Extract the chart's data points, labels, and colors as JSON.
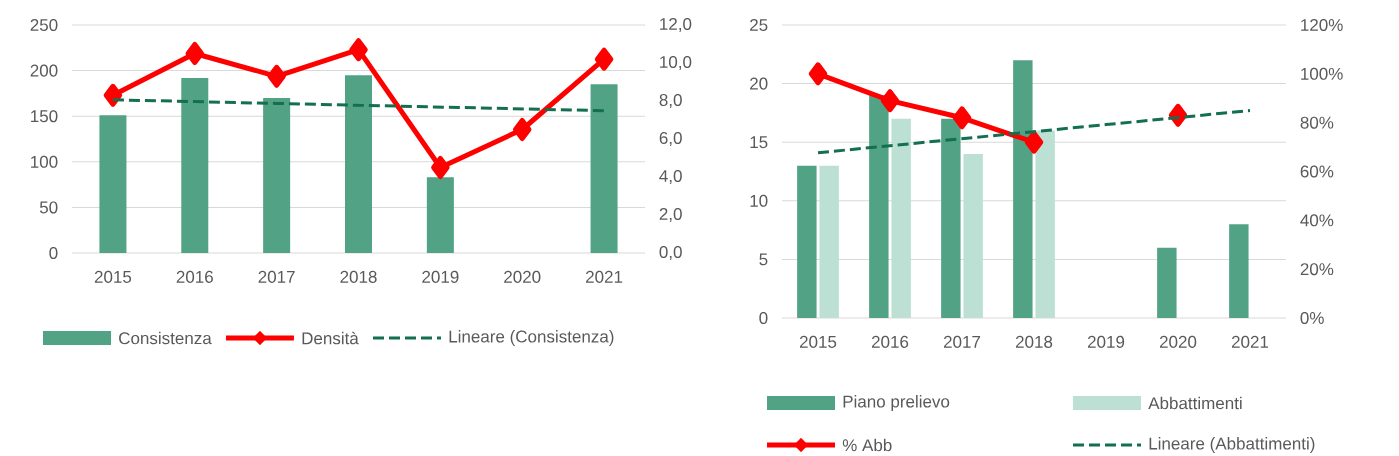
{
  "chart_data": [
    {
      "type": "bar",
      "categories": [
        "2015",
        "2016",
        "2017",
        "2018",
        "2019",
        "2020",
        "2021"
      ],
      "series": [
        {
          "name": "Consistenza",
          "color": "#52a386",
          "values": [
            151,
            192,
            170,
            195,
            83,
            null,
            185
          ]
        },
        {
          "name": "Densità",
          "type": "line",
          "color": "#ff0000",
          "marker": "diamond",
          "axis": "y2",
          "values": [
            8.3,
            10.5,
            9.3,
            10.7,
            4.5,
            6.5,
            10.2
          ]
        },
        {
          "name": "Lineare (Consistenza)",
          "type": "line",
          "color": "#136f4f",
          "line_style": "dashed",
          "values": [
            168,
            166,
            164,
            162,
            160,
            158,
            156
          ]
        }
      ],
      "ylim": [
        0,
        250
      ],
      "yticks": [
        0,
        50,
        100,
        150,
        200,
        250
      ],
      "y2lim": [
        0,
        12
      ],
      "y2ticks": [
        {
          "value": 0,
          "label": "0,0"
        },
        {
          "value": 2,
          "label": "2,0"
        },
        {
          "value": 4,
          "label": "4,0"
        },
        {
          "value": 6,
          "label": "6,0"
        },
        {
          "value": 8,
          "label": "8,0"
        },
        {
          "value": 10,
          "label": "10,0"
        },
        {
          "value": 12,
          "label": "12,0"
        }
      ],
      "grid": "y",
      "legend": "bottom"
    },
    {
      "type": "bar",
      "categories": [
        "2015",
        "2016",
        "2017",
        "2018",
        "2019",
        "2020",
        "2021"
      ],
      "series": [
        {
          "name": "Piano prelievo",
          "color": "#52a386",
          "values": [
            13,
            19,
            17,
            22,
            null,
            6,
            8
          ]
        },
        {
          "name": "Abbattimenti",
          "color": "#bde0d4",
          "values": [
            13,
            17,
            14,
            16,
            null,
            null,
            null
          ]
        },
        {
          "name": "% Abb",
          "type": "line",
          "color": "#ff0000",
          "marker": "diamond",
          "axis": "y2",
          "values": [
            100,
            89,
            82,
            72,
            null,
            83,
            null
          ]
        },
        {
          "name": "Lineare (Abbattimenti)",
          "type": "line",
          "color": "#136f4f",
          "line_style": "dashed",
          "values": [
            14.1,
            14.7,
            15.3,
            15.9,
            16.5,
            17.1,
            17.7
          ]
        }
      ],
      "ylim": [
        0,
        25
      ],
      "yticks": [
        0,
        5,
        10,
        15,
        20,
        25
      ],
      "y2lim": [
        0,
        120
      ],
      "y2ticks": [
        {
          "value": 0,
          "label": "0%"
        },
        {
          "value": 20,
          "label": "20%"
        },
        {
          "value": 40,
          "label": "40%"
        },
        {
          "value": 60,
          "label": "60%"
        },
        {
          "value": 80,
          "label": "80%"
        },
        {
          "value": 100,
          "label": "100%"
        },
        {
          "value": 120,
          "label": "120%"
        }
      ],
      "grid": "y",
      "legend": "bottom"
    }
  ]
}
